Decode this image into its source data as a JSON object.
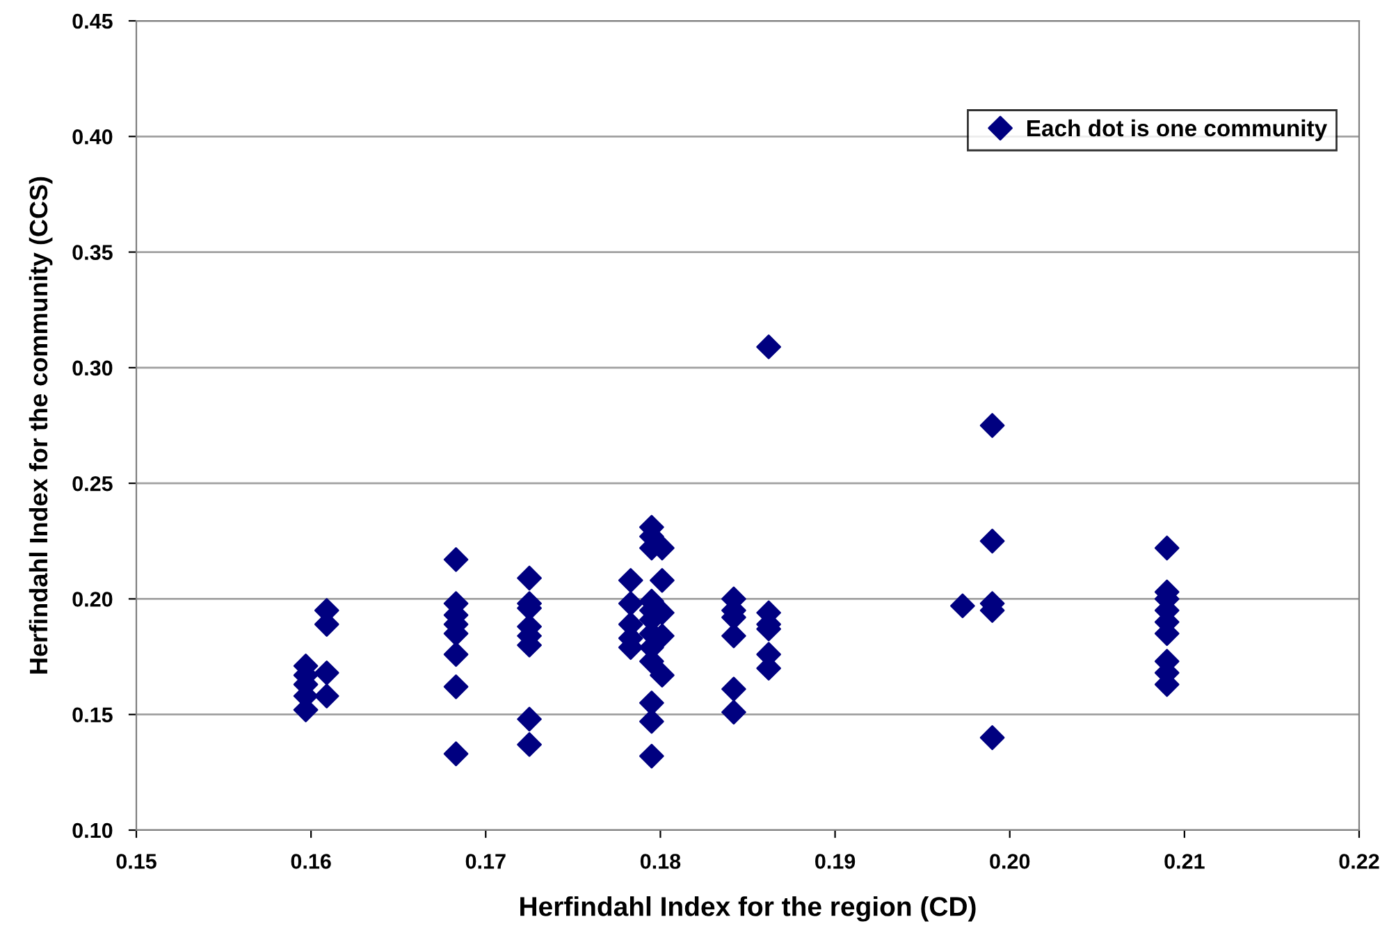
{
  "chart_data": {
    "type": "scatter",
    "xlabel": "Herfindahl Index for the region (CD)",
    "ylabel": "Herfindahl Index for the community (CCS)",
    "series": [
      {
        "name": "Each dot is one community",
        "color": "#000080",
        "x": [
          0.1597,
          0.1597,
          0.1597,
          0.1597,
          0.1597,
          0.1609,
          0.1609,
          0.1609,
          0.1609,
          0.1683,
          0.1683,
          0.1683,
          0.1683,
          0.1683,
          0.1683,
          0.1683,
          0.1683,
          0.1725,
          0.1725,
          0.1725,
          0.1725,
          0.1725,
          0.1725,
          0.1725,
          0.1725,
          0.1783,
          0.1783,
          0.1783,
          0.1783,
          0.1783,
          0.1795,
          0.1795,
          0.1795,
          0.1795,
          0.1795,
          0.1795,
          0.1795,
          0.1795,
          0.1795,
          0.1795,
          0.1795,
          0.1795,
          0.1801,
          0.1801,
          0.1801,
          0.1801,
          0.1801,
          0.1842,
          0.1842,
          0.1842,
          0.1842,
          0.1842,
          0.1842,
          0.1862,
          0.1862,
          0.1862,
          0.1862,
          0.1862,
          0.1862,
          0.1973,
          0.199,
          0.199,
          0.199,
          0.199,
          0.199,
          0.209,
          0.209,
          0.209,
          0.209,
          0.209,
          0.209,
          0.209,
          0.209,
          0.209
        ],
        "values": [
          0.171,
          0.167,
          0.163,
          0.158,
          0.152,
          0.195,
          0.189,
          0.168,
          0.158,
          0.217,
          0.198,
          0.193,
          0.189,
          0.185,
          0.176,
          0.162,
          0.133,
          0.209,
          0.198,
          0.196,
          0.188,
          0.184,
          0.18,
          0.148,
          0.137,
          0.208,
          0.198,
          0.189,
          0.183,
          0.179,
          0.231,
          0.227,
          0.222,
          0.199,
          0.195,
          0.191,
          0.185,
          0.179,
          0.173,
          0.155,
          0.147,
          0.132,
          0.222,
          0.208,
          0.194,
          0.184,
          0.167,
          0.2,
          0.195,
          0.192,
          0.184,
          0.161,
          0.151,
          0.309,
          0.194,
          0.189,
          0.187,
          0.176,
          0.17,
          0.197,
          0.275,
          0.225,
          0.198,
          0.195,
          0.14,
          0.222,
          0.203,
          0.2,
          0.195,
          0.19,
          0.185,
          0.173,
          0.168,
          0.163
        ]
      }
    ],
    "marker": "diamond",
    "xlim": [
      0.15,
      0.22
    ],
    "ylim": [
      0.1,
      0.45
    ],
    "xticks": [
      {
        "value": 0.15,
        "label": "0.15"
      },
      {
        "value": 0.16,
        "label": "0.16"
      },
      {
        "value": 0.17,
        "label": "0.17"
      },
      {
        "value": 0.18,
        "label": "0.18"
      },
      {
        "value": 0.19,
        "label": "0.19"
      },
      {
        "value": 0.2,
        "label": "0.20"
      },
      {
        "value": 0.21,
        "label": "0.21"
      },
      {
        "value": 0.22,
        "label": "0.22"
      }
    ],
    "yticks": [
      {
        "value": 0.1,
        "label": "0.10"
      },
      {
        "value": 0.15,
        "label": "0.15"
      },
      {
        "value": 0.2,
        "label": "0.20"
      },
      {
        "value": 0.25,
        "label": "0.25"
      },
      {
        "value": 0.3,
        "label": "0.30"
      },
      {
        "value": 0.35,
        "label": "0.35"
      },
      {
        "value": 0.4,
        "label": "0.40"
      },
      {
        "value": 0.45,
        "label": "0.45"
      }
    ],
    "grid": "y",
    "legend": "top right"
  }
}
